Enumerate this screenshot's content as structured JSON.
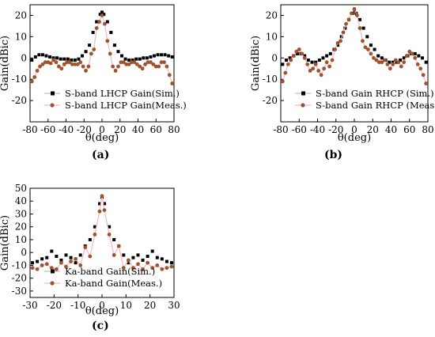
{
  "panel_labels": [
    "(a)",
    "(b)",
    "(c)"
  ],
  "chart_data": [
    {
      "type": "line",
      "panel": "(a)",
      "xlabel": "θ(deg)",
      "ylabel": "Gain(dBic)",
      "xlim": [
        -80,
        80
      ],
      "ylim": [
        -30,
        25
      ],
      "xticks": [
        -80,
        -60,
        -40,
        -20,
        0,
        20,
        40,
        60,
        80
      ],
      "yticks": [
        -20,
        -10,
        0,
        10,
        20
      ],
      "legend_position": "lower-center",
      "series": [
        {
          "name": "S-band LHCP Gain(Sim.)",
          "marker": "square",
          "color": "#000000",
          "x": [
            -78,
            -74,
            -70,
            -66,
            -62,
            -58,
            -54,
            -50,
            -46,
            -42,
            -38,
            -34,
            -30,
            -26,
            -22,
            -18,
            -14,
            -10,
            -6,
            -2,
            0,
            2,
            6,
            10,
            14,
            18,
            22,
            26,
            30,
            34,
            38,
            42,
            46,
            50,
            54,
            58,
            62,
            66,
            70,
            74,
            78
          ],
          "y": [
            -1,
            0.5,
            1.5,
            1.5,
            1,
            0.5,
            0,
            0,
            -0.5,
            -0.5,
            -0.5,
            -1,
            -1,
            -0.5,
            1,
            3,
            6,
            12,
            17,
            20.5,
            21.5,
            20.5,
            17,
            12,
            6,
            3,
            1,
            -0.5,
            -1,
            -1,
            -0.5,
            -0.5,
            0,
            0,
            0.5,
            1,
            1.5,
            1.5,
            1.5,
            1,
            0.5
          ]
        },
        {
          "name": "S-band LHCP Gain(Meas.)",
          "marker": "circle",
          "color": "#a0522d",
          "x": [
            -78,
            -75,
            -72,
            -69,
            -66,
            -63,
            -60,
            -57,
            -54,
            -51,
            -48,
            -45,
            -42,
            -39,
            -36,
            -33,
            -30,
            -27,
            -24,
            -21,
            -18,
            -15,
            -12,
            -9,
            -6,
            -3,
            0,
            3,
            6,
            9,
            12,
            15,
            18,
            21,
            24,
            27,
            30,
            33,
            36,
            39,
            42,
            45,
            48,
            51,
            54,
            57,
            60,
            63,
            66,
            69,
            72,
            75,
            78
          ],
          "y": [
            -11,
            -9,
            -6,
            -4,
            -3,
            -2,
            -2,
            -2.5,
            -1,
            -2,
            -4,
            -5,
            -3,
            -2,
            -2,
            -3,
            -3,
            -3,
            -2,
            -4,
            -6,
            -4,
            2,
            4,
            14,
            17,
            20,
            16,
            8,
            2,
            -4,
            -6,
            -4,
            -2,
            -2,
            -3,
            -3,
            -2,
            -2,
            -3,
            -4,
            -5,
            -3,
            -2,
            -2,
            -3,
            -4,
            -4,
            -2,
            -2,
            -4,
            -8,
            -12
          ]
        }
      ]
    },
    {
      "type": "line",
      "panel": "(b)",
      "xlabel": "θ(deg)",
      "ylabel": "Gain(dBic)",
      "xlim": [
        -80,
        80
      ],
      "ylim": [
        -30,
        25
      ],
      "xticks": [
        -80,
        -60,
        -40,
        -20,
        0,
        20,
        40,
        60,
        80
      ],
      "yticks": [
        -20,
        -10,
        0,
        10,
        20
      ],
      "legend_position": "lower-center",
      "series": [
        {
          "name": "S-band Gain RHCP (Sim.)",
          "marker": "square",
          "color": "#000000",
          "x": [
            -78,
            -74,
            -70,
            -66,
            -62,
            -58,
            -54,
            -50,
            -46,
            -42,
            -38,
            -34,
            -30,
            -26,
            -22,
            -18,
            -14,
            -10,
            -6,
            -2,
            0,
            2,
            6,
            10,
            14,
            18,
            22,
            26,
            30,
            34,
            38,
            42,
            46,
            50,
            54,
            58,
            62,
            66,
            70,
            74,
            78
          ],
          "y": [
            -3,
            -1,
            0,
            1,
            2,
            2,
            1,
            -1,
            -2,
            -2,
            -1,
            0,
            1,
            2,
            4,
            6,
            10,
            14,
            18,
            21,
            22.5,
            21,
            18,
            14,
            10,
            6,
            4,
            1,
            0,
            -1,
            -2,
            -2,
            -2,
            -1,
            0,
            1,
            2,
            2,
            1,
            0,
            -2
          ]
        },
        {
          "name": "S-band Gain RHCP (Meas.)",
          "marker": "circle",
          "color": "#a0522d",
          "x": [
            -78,
            -75,
            -72,
            -69,
            -66,
            -63,
            -60,
            -57,
            -54,
            -51,
            -48,
            -45,
            -42,
            -39,
            -36,
            -33,
            -30,
            -27,
            -24,
            -21,
            -18,
            -15,
            -12,
            -9,
            -6,
            -3,
            0,
            3,
            6,
            9,
            12,
            15,
            18,
            21,
            24,
            27,
            30,
            33,
            36,
            39,
            42,
            45,
            48,
            51,
            54,
            57,
            60,
            63,
            66,
            69,
            72,
            75,
            78
          ],
          "y": [
            -11,
            -7,
            -3,
            -1,
            1,
            3,
            4,
            2,
            0,
            -3,
            -6,
            -5,
            -3,
            -6,
            -8,
            -5,
            -2,
            -4,
            -1,
            4,
            7,
            8,
            12,
            16,
            18,
            21,
            23,
            20,
            14,
            8,
            5,
            4,
            2,
            0,
            -1,
            -2,
            -2,
            -1,
            -3,
            -5,
            -3,
            -1,
            -2,
            -4,
            -2,
            1,
            3,
            2,
            0,
            -3,
            -5,
            -8,
            -12
          ]
        }
      ]
    },
    {
      "type": "line",
      "panel": "(c)",
      "xlabel": "θ(deg)",
      "ylabel": "Gain(dBic)",
      "xlim": [
        -30,
        30
      ],
      "ylim": [
        -35,
        50
      ],
      "xticks": [
        -30,
        -20,
        -10,
        0,
        10,
        20,
        30
      ],
      "yticks": [
        -30,
        -20,
        -10,
        0,
        10,
        20,
        30,
        40,
        50
      ],
      "legend_position": "lower-center",
      "series": [
        {
          "name": "Ka-band Gain(Sim.)",
          "marker": "square",
          "color": "#000000",
          "x": [
            -29,
            -27,
            -25,
            -23,
            -21,
            -19,
            -17,
            -15,
            -13,
            -11,
            -9,
            -7,
            -5,
            -3,
            -1,
            0,
            1,
            3,
            5,
            7,
            9,
            11,
            13,
            15,
            17,
            19,
            21,
            23,
            25,
            27,
            29
          ],
          "y": [
            -8,
            -7,
            -5,
            -4,
            1,
            -3,
            -6,
            -2,
            -4,
            -8,
            -2,
            5,
            10,
            20,
            38,
            43,
            38,
            20,
            10,
            5,
            -2,
            -8,
            -4,
            -2,
            -6,
            -3,
            1,
            -4,
            -5,
            -7,
            -8
          ]
        },
        {
          "name": "Ka-band Gain(Meas.)",
          "marker": "circle",
          "color": "#a0522d",
          "x": [
            -29,
            -27,
            -25,
            -23,
            -21,
            -19,
            -17,
            -15,
            -13,
            -11,
            -9,
            -7,
            -5,
            -3,
            -1,
            0,
            1,
            3,
            5,
            7,
            9,
            11,
            13,
            15,
            17,
            19,
            21,
            23,
            25,
            27,
            29
          ],
          "y": [
            -12,
            -13,
            -10,
            -9,
            -12,
            -13,
            -8,
            -11,
            -7,
            -5,
            -10,
            4,
            -3,
            14,
            32,
            44,
            33,
            14,
            -2,
            5,
            -12,
            -6,
            -12,
            -9,
            -13,
            -8,
            -12,
            -10,
            -13,
            -12,
            -11
          ]
        }
      ]
    }
  ]
}
